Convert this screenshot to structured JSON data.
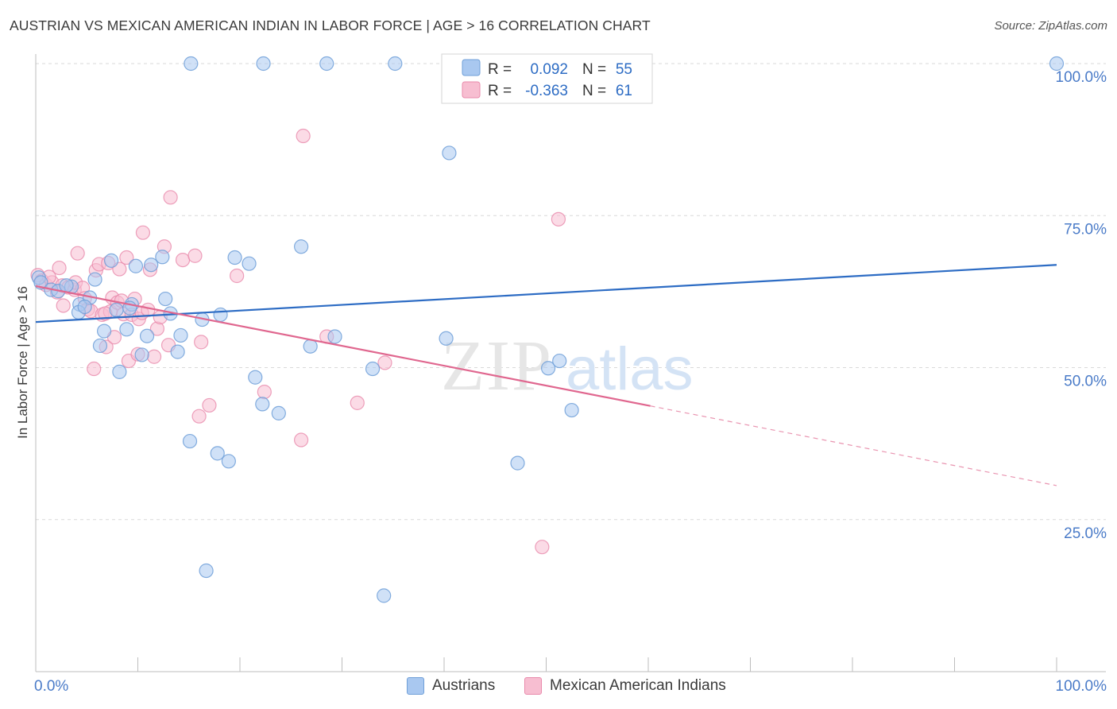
{
  "title": "AUSTRIAN VS MEXICAN AMERICAN INDIAN IN LABOR FORCE | AGE > 16 CORRELATION CHART",
  "source": "Source: ZipAtlas.com",
  "watermark": {
    "zip": "ZIP",
    "atlas": "atlas"
  },
  "colors": {
    "blue_fill": "#a9c8f0",
    "blue_stroke": "#6f9fd8",
    "blue_line": "#2d6cc4",
    "pink_fill": "#f7bed1",
    "pink_stroke": "#e98aab",
    "pink_line": "#e0678f",
    "axis_text": "#4a7bc8",
    "grid": "#d9d9d9"
  },
  "legend": {
    "rows": [
      {
        "r_label": "R =",
        "r_value": "0.092",
        "n_label": "N =",
        "n_value": "55"
      },
      {
        "r_label": "R =",
        "r_value": "-0.363",
        "n_label": "N =",
        "n_value": "61"
      }
    ]
  },
  "bottom_legend": {
    "austrians": "Austrians",
    "mexican": "Mexican American Indians"
  },
  "chart_data": {
    "type": "scatter",
    "title": "AUSTRIAN VS MEXICAN AMERICAN INDIAN IN LABOR FORCE | AGE > 16 CORRELATION CHART",
    "xlabel": "",
    "ylabel": "In Labor Force | Age > 16",
    "xlim": [
      0,
      100
    ],
    "ylim": [
      0,
      105
    ],
    "x_tick_labels": [
      "0.0%",
      "100.0%"
    ],
    "y_ticks": [
      25,
      50,
      75,
      100
    ],
    "y_tick_labels": [
      "25.0%",
      "50.0%",
      "75.0%",
      "100.0%"
    ],
    "grid": true,
    "legend_placement": "top-center",
    "series": [
      {
        "name": "Austrians",
        "color": "#a9c8f0",
        "trend": {
          "x": [
            0,
            100
          ],
          "y": [
            57.5,
            66.9
          ],
          "dashed_to": null
        },
        "points": [
          [
            0.3,
            64.8
          ],
          [
            0.5,
            64.0
          ],
          [
            1.5,
            62.8
          ],
          [
            2.2,
            62.6
          ],
          [
            3.5,
            63.3
          ],
          [
            4.3,
            60.4
          ],
          [
            4.2,
            59.1
          ],
          [
            5.3,
            61.5
          ],
          [
            5.8,
            64.5
          ],
          [
            6.3,
            53.6
          ],
          [
            6.7,
            56.0
          ],
          [
            7.4,
            67.6
          ],
          [
            7.9,
            59.5
          ],
          [
            8.2,
            49.3
          ],
          [
            8.9,
            56.3
          ],
          [
            9.4,
            60.4
          ],
          [
            9.8,
            66.7
          ],
          [
            10.4,
            52.1
          ],
          [
            10.9,
            55.2
          ],
          [
            11.3,
            66.9
          ],
          [
            12.4,
            68.2
          ],
          [
            12.7,
            61.3
          ],
          [
            13.2,
            58.9
          ],
          [
            13.9,
            52.6
          ],
          [
            14.2,
            55.3
          ],
          [
            15.1,
            37.9
          ],
          [
            15.2,
            100
          ],
          [
            16.3,
            57.9
          ],
          [
            16.7,
            16.6
          ],
          [
            17.8,
            35.9
          ],
          [
            18.1,
            58.7
          ],
          [
            18.9,
            34.6
          ],
          [
            19.5,
            68.1
          ],
          [
            20.9,
            67.1
          ],
          [
            21.5,
            48.4
          ],
          [
            22.2,
            44.0
          ],
          [
            22.3,
            100
          ],
          [
            23.8,
            42.5
          ],
          [
            26.0,
            69.9
          ],
          [
            26.9,
            53.5
          ],
          [
            28.5,
            100
          ],
          [
            29.3,
            55.1
          ],
          [
            33.0,
            49.8
          ],
          [
            34.1,
            12.5
          ],
          [
            35.2,
            100
          ],
          [
            40.2,
            54.8
          ],
          [
            40.5,
            85.3
          ],
          [
            47.2,
            34.3
          ],
          [
            50.2,
            49.9
          ],
          [
            51.3,
            51.1
          ],
          [
            52.5,
            43.0
          ],
          [
            100,
            100
          ],
          [
            3.0,
            63.5
          ],
          [
            4.8,
            60.0
          ],
          [
            9.2,
            59.8
          ]
        ]
      },
      {
        "name": "Mexican American Indians",
        "color": "#f7bed1",
        "trend": {
          "x": [
            0,
            60.2
          ],
          "y": [
            63.4,
            43.7
          ],
          "dashed_to": [
            100,
            30.6
          ]
        },
        "points": [
          [
            0.2,
            65.2
          ],
          [
            0.6,
            64.3
          ],
          [
            1.0,
            63.6
          ],
          [
            1.6,
            64.0
          ],
          [
            2.1,
            62.4
          ],
          [
            2.3,
            66.4
          ],
          [
            2.6,
            63.5
          ],
          [
            2.7,
            60.2
          ],
          [
            3.2,
            63.2
          ],
          [
            3.8,
            62.8
          ],
          [
            3.9,
            64.0
          ],
          [
            4.1,
            68.8
          ],
          [
            4.6,
            63.1
          ],
          [
            4.8,
            61.4
          ],
          [
            5.1,
            59.6
          ],
          [
            5.4,
            59.3
          ],
          [
            5.7,
            49.8
          ],
          [
            5.9,
            66.0
          ],
          [
            6.2,
            67.0
          ],
          [
            6.5,
            58.7
          ],
          [
            6.9,
            53.4
          ],
          [
            7.1,
            67.2
          ],
          [
            7.3,
            59.2
          ],
          [
            7.5,
            61.5
          ],
          [
            7.7,
            55.0
          ],
          [
            8.0,
            60.7
          ],
          [
            8.2,
            66.2
          ],
          [
            8.6,
            58.8
          ],
          [
            8.9,
            68.1
          ],
          [
            9.1,
            51.1
          ],
          [
            9.4,
            58.7
          ],
          [
            9.7,
            61.3
          ],
          [
            10.1,
            58.0
          ],
          [
            10.4,
            59.0
          ],
          [
            10.5,
            72.2
          ],
          [
            11.2,
            66.1
          ],
          [
            11.6,
            51.8
          ],
          [
            11.9,
            56.4
          ],
          [
            12.2,
            58.3
          ],
          [
            12.6,
            69.9
          ],
          [
            13.0,
            53.7
          ],
          [
            13.2,
            78.0
          ],
          [
            14.4,
            67.7
          ],
          [
            15.6,
            68.4
          ],
          [
            16.0,
            42.0
          ],
          [
            16.2,
            54.2
          ],
          [
            17.0,
            43.8
          ],
          [
            19.7,
            65.1
          ],
          [
            22.4,
            46.0
          ],
          [
            26.0,
            38.1
          ],
          [
            26.2,
            88.1
          ],
          [
            28.5,
            55.1
          ],
          [
            31.5,
            44.2
          ],
          [
            34.2,
            50.8
          ],
          [
            49.6,
            20.5
          ],
          [
            51.2,
            74.4
          ],
          [
            1.3,
            64.9
          ],
          [
            6.8,
            58.9
          ],
          [
            8.4,
            61.0
          ],
          [
            11.0,
            59.5
          ],
          [
            10.0,
            52.2
          ]
        ]
      }
    ]
  }
}
